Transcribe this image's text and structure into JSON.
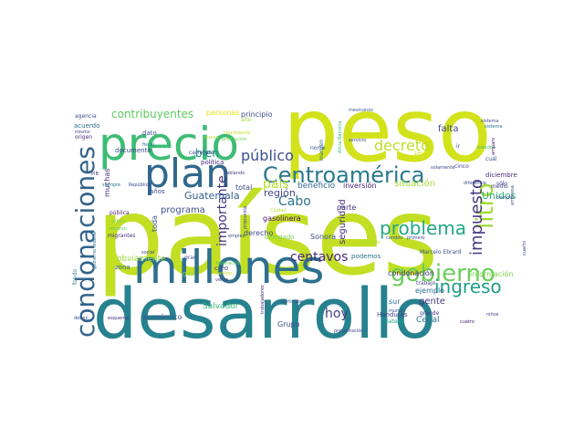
{
  "words": [
    {
      "text": "países",
      "color": "#c2df23"
    },
    {
      "text": "peso",
      "color": "#d2e21b"
    },
    {
      "text": "desarrollo",
      "color": "#26828e"
    },
    {
      "text": "millones",
      "color": "#2d708e"
    },
    {
      "text": "precio",
      "color": "#3dbc74"
    },
    {
      "text": "plan",
      "color": "#31688e"
    },
    {
      "text": "condonaciones",
      "color": "#33638d"
    },
    {
      "text": "Centroamérica",
      "color": "#2a788e"
    },
    {
      "text": "gobierno",
      "color": "#6ccd5a"
    },
    {
      "text": "litro",
      "color": "#a2da37"
    },
    {
      "text": "problema",
      "color": "#22a884"
    },
    {
      "text": "ingreso",
      "color": "#1f9e89"
    },
    {
      "text": "impuesto",
      "color": "#453781"
    },
    {
      "text": "decreto",
      "color": "#bddf26"
    },
    {
      "text": "público",
      "color": "#3b528b"
    },
    {
      "text": "importante",
      "color": "#46337e"
    },
    {
      "text": "Cabo",
      "color": "#2c728e"
    },
    {
      "text": "centavos",
      "color": "#482878"
    },
    {
      "text": "hoy",
      "color": "#433e85"
    },
    {
      "text": "país",
      "color": "#b5de2b"
    },
    {
      "text": "contribuyentes",
      "color": "#5ec962"
    },
    {
      "text": "Guatemala",
      "color": "#34608d"
    },
    {
      "text": "programa",
      "color": "#3b528b"
    },
    {
      "text": "seguridad",
      "color": "#472d7b"
    },
    {
      "text": "región",
      "color": "#414487"
    },
    {
      "text": "gente",
      "color": "#443983"
    },
    {
      "text": "Salvador",
      "color": "#35b779"
    },
    {
      "text": "Unidos",
      "color": "#2fb47c"
    },
    {
      "text": "falta",
      "color": "#3e4989"
    },
    {
      "text": "situación",
      "color": "#a5db36"
    },
    {
      "text": "beneficio",
      "color": "#31688e"
    },
    {
      "text": "obviamente",
      "color": "#9dd93b"
    },
    {
      "text": "Cepal",
      "color": "#2c728e"
    },
    {
      "text": "bien",
      "color": "#21918c"
    },
    {
      "text": "total",
      "color": "#3f4788"
    },
    {
      "text": "parte",
      "color": "#443b84"
    },
    {
      "text": "Sonora",
      "color": "#3e4c8a"
    },
    {
      "text": "inversión",
      "color": "#48186a"
    },
    {
      "text": "Ley",
      "color": "#d8e219"
    },
    {
      "text": "toda",
      "color": "#3b528b"
    },
    {
      "text": "ejemplo",
      "color": "#306a8e"
    },
    {
      "text": "información",
      "color": "#7fd34e"
    },
    {
      "text": "condonación",
      "color": "#472c7a"
    },
    {
      "text": "derecho",
      "color": "#3f4788"
    },
    {
      "text": "gasolinera",
      "color": "#471365"
    },
    {
      "text": "Grupo",
      "color": "#3c508b"
    },
    {
      "text": "Honduras",
      "color": "#404588"
    },
    {
      "text": "económico",
      "color": "#3a538b"
    },
    {
      "text": "delegado",
      "color": "#7ad151"
    },
    {
      "text": "podemos",
      "color": "#2b758e"
    },
    {
      "text": "Marcelo Ebrard",
      "color": "#3d4e8a"
    },
    {
      "text": "diciembre",
      "color": "#472f7d"
    },
    {
      "text": "personas",
      "color": "#e5e419"
    },
    {
      "text": "principio",
      "color": "#3e4a89"
    },
    {
      "text": "mexicanos",
      "color": "#39568c"
    },
    {
      "text": "sistema",
      "color": "#3e4989"
    },
    {
      "text": "agencia",
      "color": "#3e4c8a"
    },
    {
      "text": "acuerdo",
      "color": "#2f6b8e"
    },
    {
      "text": "documento",
      "color": "#404588"
    },
    {
      "text": "dato",
      "color": "#3b528b"
    },
    {
      "text": "fiscal",
      "color": "#2a788e"
    },
    {
      "text": "política",
      "color": "#472a7a"
    },
    {
      "text": "muchas",
      "color": "#46307e"
    },
    {
      "text": "años",
      "color": "#3f4889"
    },
    {
      "text": "margen",
      "color": "#2e6e8e"
    },
    {
      "text": "norte",
      "color": "#3a548c"
    },
    {
      "text": "cuál",
      "color": "#3c4f8a"
    },
    {
      "text": "medio",
      "color": "#414487"
    },
    {
      "text": "sólo",
      "color": "#3e4989"
    },
    {
      "text": "zona",
      "color": "#32648e"
    },
    {
      "text": "creo",
      "color": "#404688"
    },
    {
      "text": "grande",
      "color": "#443983"
    },
    {
      "text": "sur",
      "color": "#2d718e"
    },
    {
      "text": "pública",
      "color": "#481f70"
    },
    {
      "text": "agua",
      "color": "#87d549"
    },
    {
      "text": "recurso",
      "color": "#5ec962"
    },
    {
      "text": "migrantes",
      "color": "#46337e"
    },
    {
      "text": "gran",
      "color": "#3b518b"
    },
    {
      "text": "gas",
      "color": "#8bd646"
    },
    {
      "text": "primero",
      "color": "#3e4a89"
    },
    {
      "text": "trabajo",
      "color": "#404588"
    },
    {
      "text": "mundo",
      "color": "#3c508b"
    },
    {
      "text": "materia",
      "color": "#21a685"
    },
    {
      "text": "cuatro",
      "color": "#48186a"
    },
    {
      "text": "niños",
      "color": "#453581"
    },
    {
      "text": "tiempo",
      "color": "#3d4d8a"
    },
    {
      "text": "segundo",
      "color": "#a8db34"
    },
    {
      "text": "presentación",
      "color": "#3e4a89"
    },
    {
      "text": "servicio",
      "color": "#404588"
    },
    {
      "text": "sistema",
      "color": "#2d708e"
    },
    {
      "text": "empleo",
      "color": "#3b528b"
    },
    {
      "text": "social",
      "color": "#3e4989"
    },
    {
      "text": "venta",
      "color": "#423f85"
    },
    {
      "text": "estados",
      "color": "#44bf70"
    },
    {
      "text": "amparo",
      "color": "#481769"
    },
    {
      "text": "cinco",
      "color": "#414487"
    },
    {
      "text": "Ciudad",
      "color": "#b8de29"
    },
    {
      "text": "federación",
      "color": "#5cc863"
    },
    {
      "text": "propuesta",
      "color": "#3e4a89"
    },
    {
      "text": "siempre",
      "color": "#2c728e"
    },
    {
      "text": "República",
      "color": "#3d4e8a"
    },
    {
      "text": "PIB",
      "color": "#443983"
    },
    {
      "text": "crecimiento",
      "color": "#c0df25"
    },
    {
      "text": "hablando",
      "color": "#433e85"
    },
    {
      "text": "carretera",
      "color": "#3e4c8a"
    },
    {
      "text": "trabajadores",
      "color": "#472d7b"
    },
    {
      "text": "participar",
      "color": "#3b528b"
    },
    {
      "text": "partido",
      "color": "#c8e020"
    },
    {
      "text": "solamente",
      "color": "#404588"
    },
    {
      "text": "Alicia Bárcena",
      "color": "#3dbc74"
    },
    {
      "text": "fondo",
      "color": "#2a788e"
    },
    {
      "text": "alto",
      "color": "#a0da39"
    },
    {
      "text": "nuevo",
      "color": "#b2dd2d"
    },
    {
      "text": "esquema",
      "color": "#46307e"
    },
    {
      "text": "deben",
      "color": "#3e4989"
    },
    {
      "text": "cambio",
      "color": "#39558c"
    },
    {
      "text": "producción",
      "color": "#6ece58"
    },
    {
      "text": "diferencia",
      "color": "#3c4f8a"
    },
    {
      "text": "mismo",
      "color": "#404588"
    },
    {
      "text": "origen",
      "color": "#472c7a"
    },
    {
      "text": "ir",
      "color": "#3e4a89"
    },
    {
      "text": "gobierno federal",
      "color": "#2c738e"
    },
    {
      "text": "cuarto",
      "color": "#3f4889"
    },
    {
      "text": "empresa",
      "color": "#3b528b"
    }
  ]
}
